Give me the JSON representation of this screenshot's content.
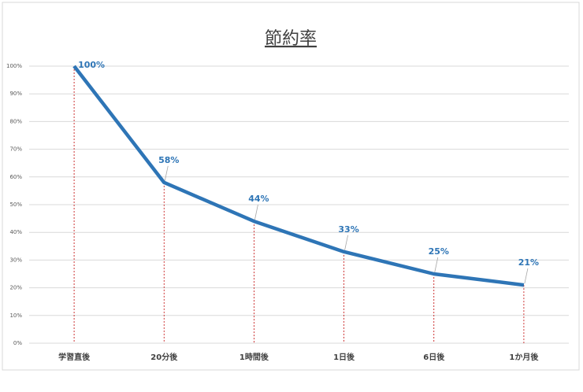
{
  "chart_data": {
    "type": "line",
    "title": "節約率",
    "categories": [
      "学習直後",
      "20分後",
      "1時間後",
      "1日後",
      "6日後",
      "1か月後"
    ],
    "series": [
      {
        "name": "節約率",
        "color": "#2e75b6",
        "values": [
          100,
          58,
          44,
          33,
          25,
          21
        ],
        "value_labels": [
          "100%",
          "58%",
          "44%",
          "33%",
          "25%",
          "21%"
        ]
      }
    ],
    "ylim": [
      0,
      100
    ],
    "yticks": [
      {
        "value": 0,
        "label": "0%"
      },
      {
        "value": 10,
        "label": "10%"
      },
      {
        "value": 20,
        "label": "20%"
      },
      {
        "value": 30,
        "label": "30%"
      },
      {
        "value": 40,
        "label": "40%"
      },
      {
        "value": 50,
        "label": "50%"
      },
      {
        "value": 60,
        "label": "60%"
      },
      {
        "value": 70,
        "label": "70%"
      },
      {
        "value": 80,
        "label": "80%"
      },
      {
        "value": 90,
        "label": "90%"
      },
      {
        "value": 100,
        "label": "100%"
      }
    ],
    "grid": true,
    "drop_lines": true
  }
}
